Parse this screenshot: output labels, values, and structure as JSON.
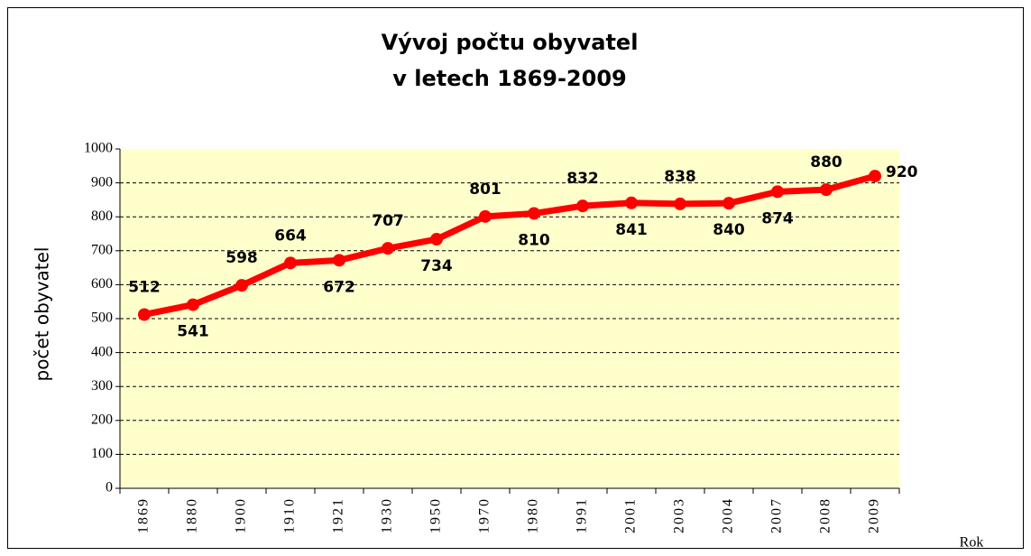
{
  "chart_data": {
    "type": "line",
    "title": [
      "Vývoj počtu obyvatel",
      "v letech 1869-2009"
    ],
    "y_label": "počet obyvatel",
    "x_label": "Rok",
    "categories": [
      "1869",
      "1880",
      "1900",
      "1910",
      "1921",
      "1930",
      "1950",
      "1970",
      "1980",
      "1991",
      "2001",
      "2003",
      "2004",
      "2007",
      "2008",
      "2009"
    ],
    "series": [
      {
        "name": "počet obyvatel",
        "color": "#ff0000",
        "values": [
          512,
          541,
          598,
          664,
          672,
          707,
          734,
          801,
          810,
          832,
          841,
          838,
          840,
          874,
          880,
          920
        ]
      }
    ],
    "ylim": [
      0,
      1000
    ],
    "yticks": [
      0,
      100,
      200,
      300,
      400,
      500,
      600,
      700,
      800,
      900,
      1000
    ],
    "grid": true,
    "plot_background": "#ffffcc"
  }
}
